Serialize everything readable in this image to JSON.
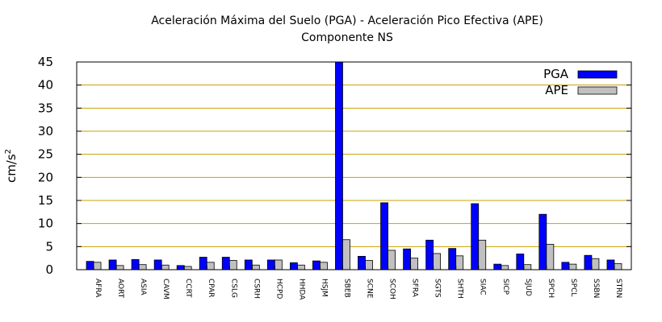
{
  "chart_data": {
    "type": "bar",
    "title": "Aceleración Máxima del Suelo (PGA) -  Aceleración Pico Efectiva (APE)",
    "subtitle": "Componente NS",
    "ylabel_base": "cm/s",
    "ylabel_sup": "2",
    "xlabel": "",
    "ylim": [
      0,
      45
    ],
    "yticks": [
      0,
      5,
      10,
      15,
      20,
      25,
      30,
      35,
      40,
      45
    ],
    "grid": true,
    "legend_position": "top-right",
    "categories": [
      "AFRA",
      "AORT",
      "ASIA",
      "CAVM",
      "CCRT",
      "CPAR",
      "CSLG",
      "CSRH",
      "HCPD",
      "HHDA",
      "HSJM",
      "SBEB",
      "SCNE",
      "SCOH",
      "SFRA",
      "SGTS",
      "SHTH",
      "SIAC",
      "SICP",
      "SJUD",
      "SPCH",
      "SPCL",
      "SSBN",
      "STRN"
    ],
    "series": [
      {
        "name": "PGA",
        "color": "#0000ff",
        "values": [
          1.8,
          2.1,
          2.2,
          2.1,
          0.9,
          2.7,
          2.7,
          2.1,
          2.1,
          1.5,
          1.9,
          45.0,
          2.9,
          14.5,
          4.5,
          6.4,
          4.6,
          14.3,
          1.2,
          3.4,
          12.0,
          1.6,
          3.1,
          2.1
        ]
      },
      {
        "name": "APE",
        "color": "#c0c0c0",
        "values": [
          1.6,
          0.9,
          1.1,
          1.0,
          0.7,
          1.6,
          2.0,
          1.0,
          2.1,
          1.0,
          1.6,
          6.5,
          2.0,
          4.2,
          2.5,
          3.5,
          3.0,
          6.4,
          0.9,
          1.1,
          5.5,
          1.2,
          2.4,
          1.3
        ]
      }
    ]
  }
}
